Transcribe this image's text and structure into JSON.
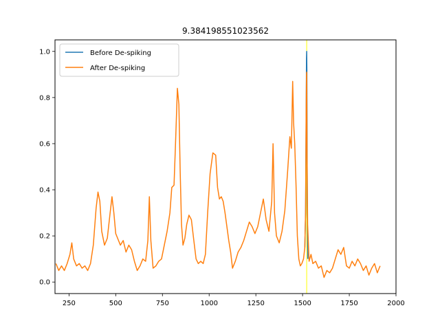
{
  "chart_data": {
    "type": "line",
    "title": "9.384198551023562",
    "xlabel": "",
    "ylabel": "",
    "xlim": [
      175,
      2000
    ],
    "ylim": [
      -0.05,
      1.05
    ],
    "x_ticks": [
      250,
      500,
      750,
      1000,
      1250,
      1500,
      1750,
      2000
    ],
    "x_tick_labels": [
      "250",
      "500",
      "750",
      "1000",
      "1250",
      "1500",
      "1750",
      "2000"
    ],
    "y_ticks": [
      0.0,
      0.2,
      0.4,
      0.6,
      0.8,
      1.0
    ],
    "y_tick_labels": [
      "0.0",
      "0.2",
      "0.4",
      "0.6",
      "0.8",
      "1.0"
    ],
    "grid": false,
    "legend_position": "top-left",
    "vertical_marker": {
      "x": 1522,
      "color": "#ffff00"
    },
    "series": [
      {
        "name": "Before De-spiking",
        "color": "#1f77b4",
        "x": [
          1512,
          1516,
          1519,
          1521,
          1522,
          1523,
          1525,
          1528
        ],
        "y": [
          0.15,
          0.3,
          0.7,
          0.97,
          1.0,
          0.92,
          0.35,
          0.1
        ]
      },
      {
        "name": "After De-spiking",
        "color": "#ff7f0e",
        "x": [
          180,
          195,
          210,
          225,
          240,
          255,
          265,
          275,
          290,
          305,
          320,
          335,
          350,
          365,
          380,
          395,
          405,
          415,
          425,
          440,
          455,
          470,
          480,
          490,
          500,
          510,
          525,
          540,
          555,
          570,
          585,
          600,
          615,
          630,
          645,
          660,
          672,
          680,
          688,
          700,
          715,
          730,
          745,
          760,
          775,
          790,
          800,
          812,
          820,
          830,
          838,
          845,
          852,
          860,
          870,
          880,
          892,
          905,
          918,
          930,
          942,
          955,
          968,
          980,
          992,
          1005,
          1020,
          1035,
          1045,
          1055,
          1065,
          1075,
          1085,
          1095,
          1105,
          1115,
          1125,
          1140,
          1155,
          1170,
          1185,
          1200,
          1215,
          1230,
          1245,
          1260,
          1275,
          1290,
          1305,
          1320,
          1335,
          1342,
          1350,
          1360,
          1375,
          1390,
          1405,
          1420,
          1432,
          1440,
          1447,
          1452,
          1458,
          1465,
          1472,
          1480,
          1488,
          1496,
          1505,
          1512,
          1516,
          1519,
          1521,
          1522,
          1524,
          1527,
          1535,
          1545,
          1555,
          1570,
          1585,
          1600,
          1615,
          1630,
          1645,
          1660,
          1675,
          1690,
          1705,
          1720,
          1735,
          1750,
          1765,
          1780,
          1795,
          1810,
          1825,
          1840,
          1855,
          1870,
          1885,
          1900,
          1915
        ],
        "y": [
          0.08,
          0.05,
          0.07,
          0.05,
          0.08,
          0.12,
          0.17,
          0.1,
          0.07,
          0.08,
          0.06,
          0.07,
          0.05,
          0.08,
          0.16,
          0.32,
          0.39,
          0.35,
          0.22,
          0.16,
          0.19,
          0.3,
          0.37,
          0.3,
          0.21,
          0.19,
          0.16,
          0.18,
          0.13,
          0.16,
          0.14,
          0.09,
          0.05,
          0.07,
          0.1,
          0.09,
          0.18,
          0.37,
          0.18,
          0.06,
          0.07,
          0.09,
          0.1,
          0.16,
          0.22,
          0.3,
          0.41,
          0.42,
          0.6,
          0.84,
          0.77,
          0.48,
          0.25,
          0.16,
          0.19,
          0.25,
          0.29,
          0.27,
          0.18,
          0.1,
          0.08,
          0.09,
          0.08,
          0.12,
          0.3,
          0.47,
          0.56,
          0.55,
          0.41,
          0.36,
          0.37,
          0.35,
          0.3,
          0.24,
          0.18,
          0.13,
          0.06,
          0.09,
          0.13,
          0.15,
          0.18,
          0.22,
          0.26,
          0.24,
          0.21,
          0.24,
          0.3,
          0.36,
          0.27,
          0.22,
          0.35,
          0.6,
          0.3,
          0.2,
          0.17,
          0.22,
          0.31,
          0.48,
          0.63,
          0.58,
          0.87,
          0.69,
          0.6,
          0.42,
          0.2,
          0.1,
          0.07,
          0.08,
          0.1,
          0.15,
          0.3,
          0.72,
          0.9,
          0.91,
          0.55,
          0.25,
          0.09,
          0.12,
          0.08,
          0.09,
          0.06,
          0.07,
          0.02,
          0.05,
          0.04,
          0.06,
          0.1,
          0.14,
          0.12,
          0.15,
          0.07,
          0.06,
          0.09,
          0.07,
          0.1,
          0.08,
          0.05,
          0.07,
          0.03,
          0.06,
          0.08,
          0.04,
          0.07
        ]
      }
    ]
  }
}
